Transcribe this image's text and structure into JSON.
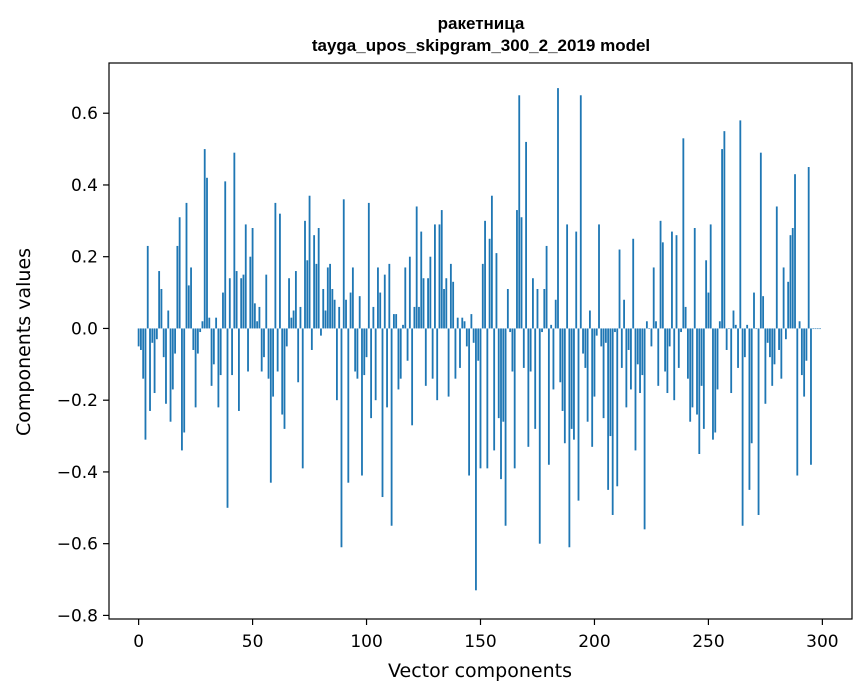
{
  "chart_data": {
    "type": "bar",
    "title": "ракетница",
    "subtitle": "tayga_upos_skipgram_300_2_2019 model",
    "xlabel": "Vector components",
    "ylabel": "Components values",
    "xlim": [
      -13,
      313
    ],
    "ylim": [
      -0.81,
      0.74
    ],
    "xticks": [
      0,
      50,
      100,
      150,
      200,
      250,
      300
    ],
    "yticks": [
      -0.8,
      -0.6,
      -0.4,
      -0.2,
      0.0,
      0.2,
      0.4,
      0.6
    ],
    "ytick_labels": [
      "−0.8",
      "−0.6",
      "−0.4",
      "−0.2",
      "0.0",
      "0.2",
      "0.4",
      "0.6"
    ],
    "bar_color": "#1f77b4",
    "grid": false,
    "legend": false,
    "x": "0..299 (component index)",
    "values": [
      -0.05,
      -0.06,
      -0.14,
      -0.31,
      0.23,
      -0.23,
      -0.04,
      -0.18,
      -0.03,
      0.16,
      0.11,
      -0.08,
      -0.21,
      0.05,
      -0.26,
      -0.17,
      -0.07,
      0.23,
      0.31,
      -0.34,
      -0.29,
      0.35,
      0.12,
      0.17,
      -0.06,
      -0.22,
      -0.07,
      -0.01,
      0.02,
      0.5,
      0.42,
      0.03,
      -0.16,
      -0.1,
      0.03,
      -0.22,
      -0.13,
      0.1,
      0.41,
      -0.5,
      0.14,
      -0.13,
      0.49,
      0.16,
      -0.23,
      0.14,
      0.15,
      0.29,
      -0.12,
      0.2,
      0.28,
      0.07,
      0.02,
      0.06,
      -0.12,
      -0.08,
      0.15,
      -0.14,
      -0.43,
      -0.19,
      0.35,
      -0.12,
      0.32,
      -0.24,
      -0.28,
      -0.05,
      0.14,
      0.03,
      0.05,
      0.16,
      -0.15,
      0.06,
      -0.39,
      0.3,
      0.19,
      0.37,
      -0.06,
      0.26,
      0.18,
      0.28,
      -0.02,
      0.11,
      0.05,
      0.17,
      0.18,
      0.11,
      0.08,
      -0.2,
      0.06,
      -0.61,
      0.36,
      0.08,
      -0.43,
      0.1,
      0.17,
      -0.12,
      -0.14,
      0.09,
      -0.41,
      -0.13,
      -0.08,
      0.35,
      -0.25,
      0.06,
      -0.2,
      0.17,
      0.1,
      -0.47,
      0.15,
      -0.22,
      0.18,
      -0.55,
      0.04,
      0.04,
      -0.17,
      -0.14,
      0.01,
      0.17,
      -0.09,
      0.2,
      -0.27,
      0.06,
      0.34,
      0.06,
      0.27,
      0.14,
      -0.16,
      0.14,
      0.2,
      -0.14,
      0.29,
      -0.2,
      0.29,
      0.33,
      0.11,
      0.14,
      -0.19,
      0.18,
      0.13,
      -0.14,
      0.03,
      -0.11,
      0.03,
      0.02,
      -0.05,
      -0.41,
      0.04,
      -0.04,
      -0.73,
      -0.09,
      -0.39,
      0.18,
      0.3,
      -0.39,
      0.25,
      0.37,
      -0.34,
      0.21,
      -0.25,
      -0.42,
      -0.26,
      -0.55,
      0.11,
      -0.01,
      -0.12,
      -0.39,
      0.33,
      0.65,
      0.31,
      -0.11,
      0.52,
      -0.33,
      -0.12,
      0.14,
      -0.28,
      0.11,
      -0.6,
      -0.01,
      0.11,
      0.23,
      -0.38,
      0.01,
      -0.17,
      0.08,
      0.67,
      -0.15,
      -0.23,
      -0.32,
      0.29,
      -0.61,
      -0.28,
      -0.31,
      0.27,
      -0.48,
      0.65,
      -0.07,
      -0.11,
      -0.26,
      0.05,
      -0.33,
      -0.19,
      -0.02,
      0.29,
      -0.05,
      -0.25,
      -0.04,
      -0.45,
      -0.3,
      -0.52,
      -0.01,
      -0.44,
      0.22,
      -0.11,
      0.08,
      -0.22,
      -0.06,
      -0.17,
      0.25,
      -0.34,
      -0.1,
      -0.18,
      -0.13,
      -0.56,
      0.02,
      0.0,
      -0.05,
      0.17,
      0.02,
      -0.16,
      0.3,
      0.24,
      -0.12,
      -0.18,
      -0.05,
      0.27,
      -0.2,
      0.26,
      -0.11,
      -0.01,
      0.53,
      0.06,
      -0.14,
      -0.26,
      -0.22,
      0.28,
      -0.24,
      -0.35,
      -0.16,
      -0.28,
      0.19,
      0.1,
      0.29,
      -0.31,
      -0.29,
      -0.17,
      0.02,
      0.5,
      0.55,
      -0.06,
      0.0,
      -0.18,
      0.05,
      0.01,
      -0.11,
      0.58,
      -0.55,
      -0.08,
      0.01,
      -0.45,
      -0.32,
      0.1,
      0.0,
      -0.52,
      0.49,
      0.09,
      -0.21,
      -0.04,
      -0.08,
      -0.16,
      -0.1,
      0.34,
      -0.06,
      -0.14,
      0.17,
      -0.03,
      0.13,
      0.26,
      0.28,
      0.43,
      -0.41,
      0.02,
      -0.13,
      -0.19,
      -0.09,
      0.45,
      -0.38,
      0.0,
      0.0,
      0.0,
      0.0
    ]
  }
}
